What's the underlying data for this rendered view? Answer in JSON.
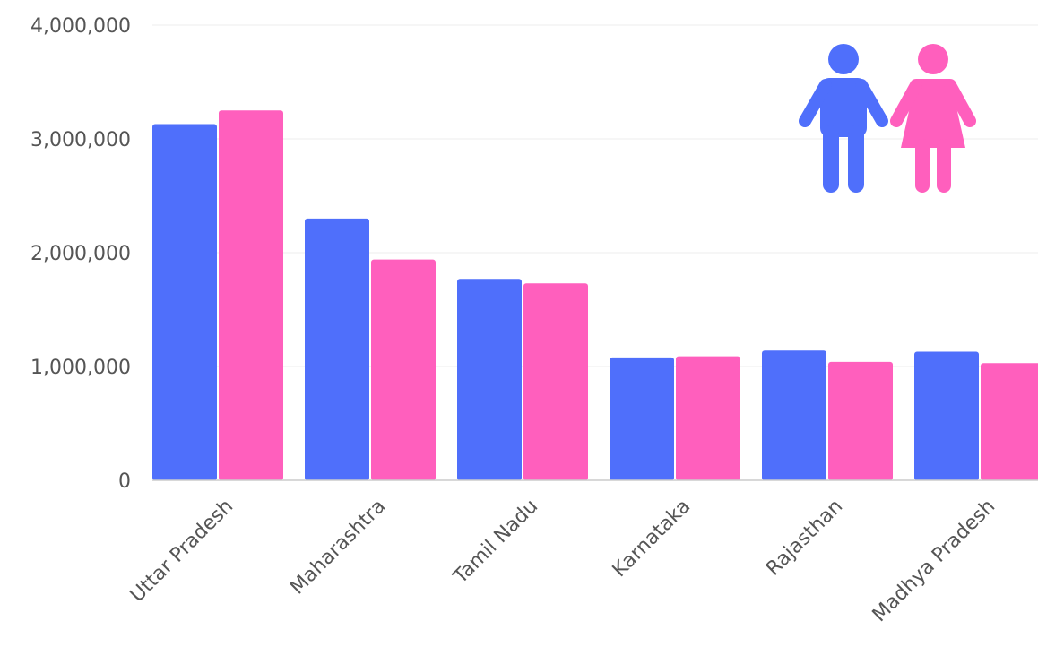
{
  "chart_data": {
    "type": "bar",
    "categories": [
      "Uttar Pradesh",
      "Maharashtra",
      "Tamil Nadu",
      "Karnataka",
      "Rajasthan",
      "Madhya Pradesh"
    ],
    "series": [
      {
        "values": [
          3130000,
          2300000,
          1770000,
          1080000,
          1140000,
          1130000
        ]
      },
      {
        "values": [
          3250000,
          1940000,
          1730000,
          1090000,
          1040000,
          1030000
        ]
      }
    ],
    "yticks": [
      {
        "value": 0,
        "label": "0"
      },
      {
        "value": 1000000,
        "label": "1,000,000"
      },
      {
        "value": 2000000,
        "label": "2,000,000"
      },
      {
        "value": 3000000,
        "label": "3,000,000"
      },
      {
        "value": 4000000,
        "label": "4,000,000"
      }
    ],
    "ylim": [
      0,
      4000000
    ],
    "grid": true,
    "legend_icons": [
      "male-figure-icon",
      "female-figure-icon"
    ],
    "colors": {
      "male": "#4f6ffb",
      "female": "#ff5fbd",
      "grid": "#eeeeee",
      "text": "#555555"
    }
  }
}
